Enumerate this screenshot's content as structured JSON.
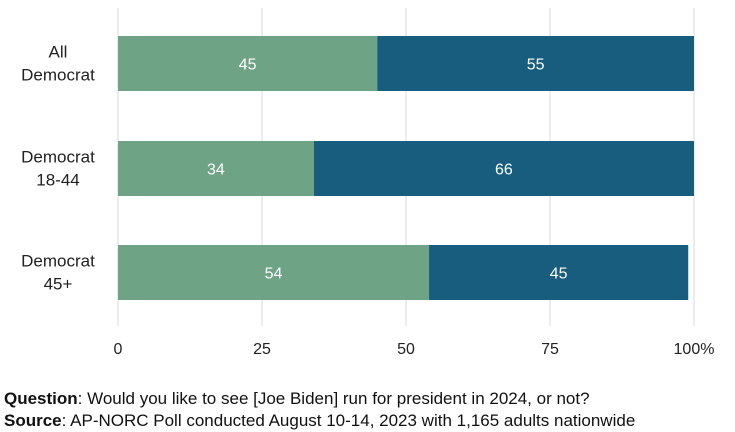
{
  "chart_data": {
    "type": "bar",
    "orientation": "horizontal",
    "stacked": true,
    "categories": [
      [
        "All",
        "Democrat"
      ],
      [
        "Democrat",
        "18-44"
      ],
      [
        "Democrat",
        "45+"
      ]
    ],
    "series": [
      {
        "values": [
          45,
          34,
          54
        ],
        "color": "#6fa386"
      },
      {
        "values": [
          55,
          66,
          45
        ],
        "color": "#185d7e"
      }
    ],
    "xlim": [
      0,
      100
    ],
    "xticks": [
      0,
      25,
      50,
      75,
      100
    ],
    "xtick_labels": [
      "0",
      "25",
      "50",
      "75",
      "100%"
    ],
    "grid": true,
    "legend": "none"
  },
  "footer": {
    "question_label": "Question",
    "question_text": ": Would you like to see [Joe Biden] run for president in 2024, or not?",
    "source_label": "Source",
    "source_text": ": AP-NORC Poll conducted August 10-14, 2023 with 1,165 adults nationwide"
  }
}
